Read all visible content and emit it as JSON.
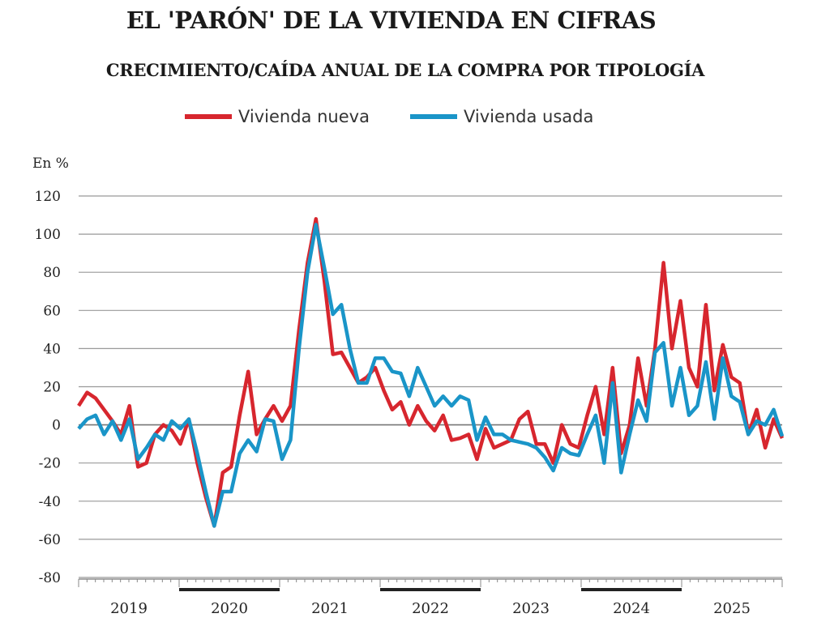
{
  "title": "EL 'PARÓN' DE LA VIVIENDA EN CIFRAS",
  "subtitle": "CRECIMIENTO/CAÍDA ANUAL DE LA COMPRA POR TIPOLOGÍA",
  "chart_data": {
    "type": "line",
    "title": "EL 'PARÓN' DE LA VIVIENDA EN CIFRAS",
    "subtitle": "CRECIMIENTO/CAÍDA ANUAL DE LA COMPRA POR TIPOLOGÍA",
    "ylabel": "En %",
    "xlabel": "",
    "ylim": [
      -80,
      120
    ],
    "yticks": [
      "120",
      "100",
      "80",
      "60",
      "40",
      "20",
      "0",
      "-20",
      "-40",
      "-60",
      "-80"
    ],
    "xtick_labels": [
      "2019",
      "2020",
      "2021",
      "2022",
      "2023",
      "2024",
      "2025"
    ],
    "x_frequency": "monthly",
    "grid": true,
    "legend_position": "top",
    "series": [
      {
        "name": "Vivienda nueva",
        "color": "#d7262e",
        "values": [
          10,
          17,
          14,
          8,
          2,
          -5,
          10,
          -22,
          -20,
          -5,
          0,
          -3,
          -10,
          3,
          -20,
          -38,
          -53,
          -25,
          -22,
          5,
          28,
          -5,
          3,
          10,
          2,
          10,
          50,
          85,
          108,
          75,
          37,
          38,
          30,
          22,
          25,
          30,
          18,
          8,
          12,
          0,
          10,
          2,
          -3,
          5,
          -8,
          -7,
          -5,
          -18,
          -2,
          -12,
          -10,
          -8,
          3,
          7,
          -10,
          -10,
          -20,
          0,
          -10,
          -12,
          5,
          20,
          -5,
          30,
          -15,
          0,
          35,
          10,
          40,
          85,
          40,
          65,
          30,
          20,
          63,
          18,
          42,
          25,
          22,
          -5,
          8,
          -12,
          3,
          -7
        ]
      },
      {
        "name": "Vivienda usada",
        "color": "#1a95c8",
        "values": [
          -2,
          3,
          5,
          -5,
          2,
          -8,
          3,
          -18,
          -12,
          -5,
          -8,
          2,
          -2,
          3,
          -15,
          -35,
          -53,
          -35,
          -35,
          -15,
          -8,
          -14,
          3,
          2,
          -18,
          -8,
          40,
          80,
          105,
          82,
          58,
          63,
          40,
          22,
          22,
          35,
          35,
          28,
          27,
          15,
          30,
          20,
          10,
          15,
          10,
          15,
          13,
          -8,
          4,
          -5,
          -5,
          -8,
          -9,
          -10,
          -12,
          -17,
          -24,
          -12,
          -15,
          -16,
          -5,
          5,
          -20,
          22,
          -25,
          -5,
          13,
          2,
          38,
          43,
          10,
          30,
          5,
          10,
          33,
          3,
          35,
          15,
          12,
          -5,
          2,
          0,
          8,
          -6
        ]
      }
    ]
  }
}
